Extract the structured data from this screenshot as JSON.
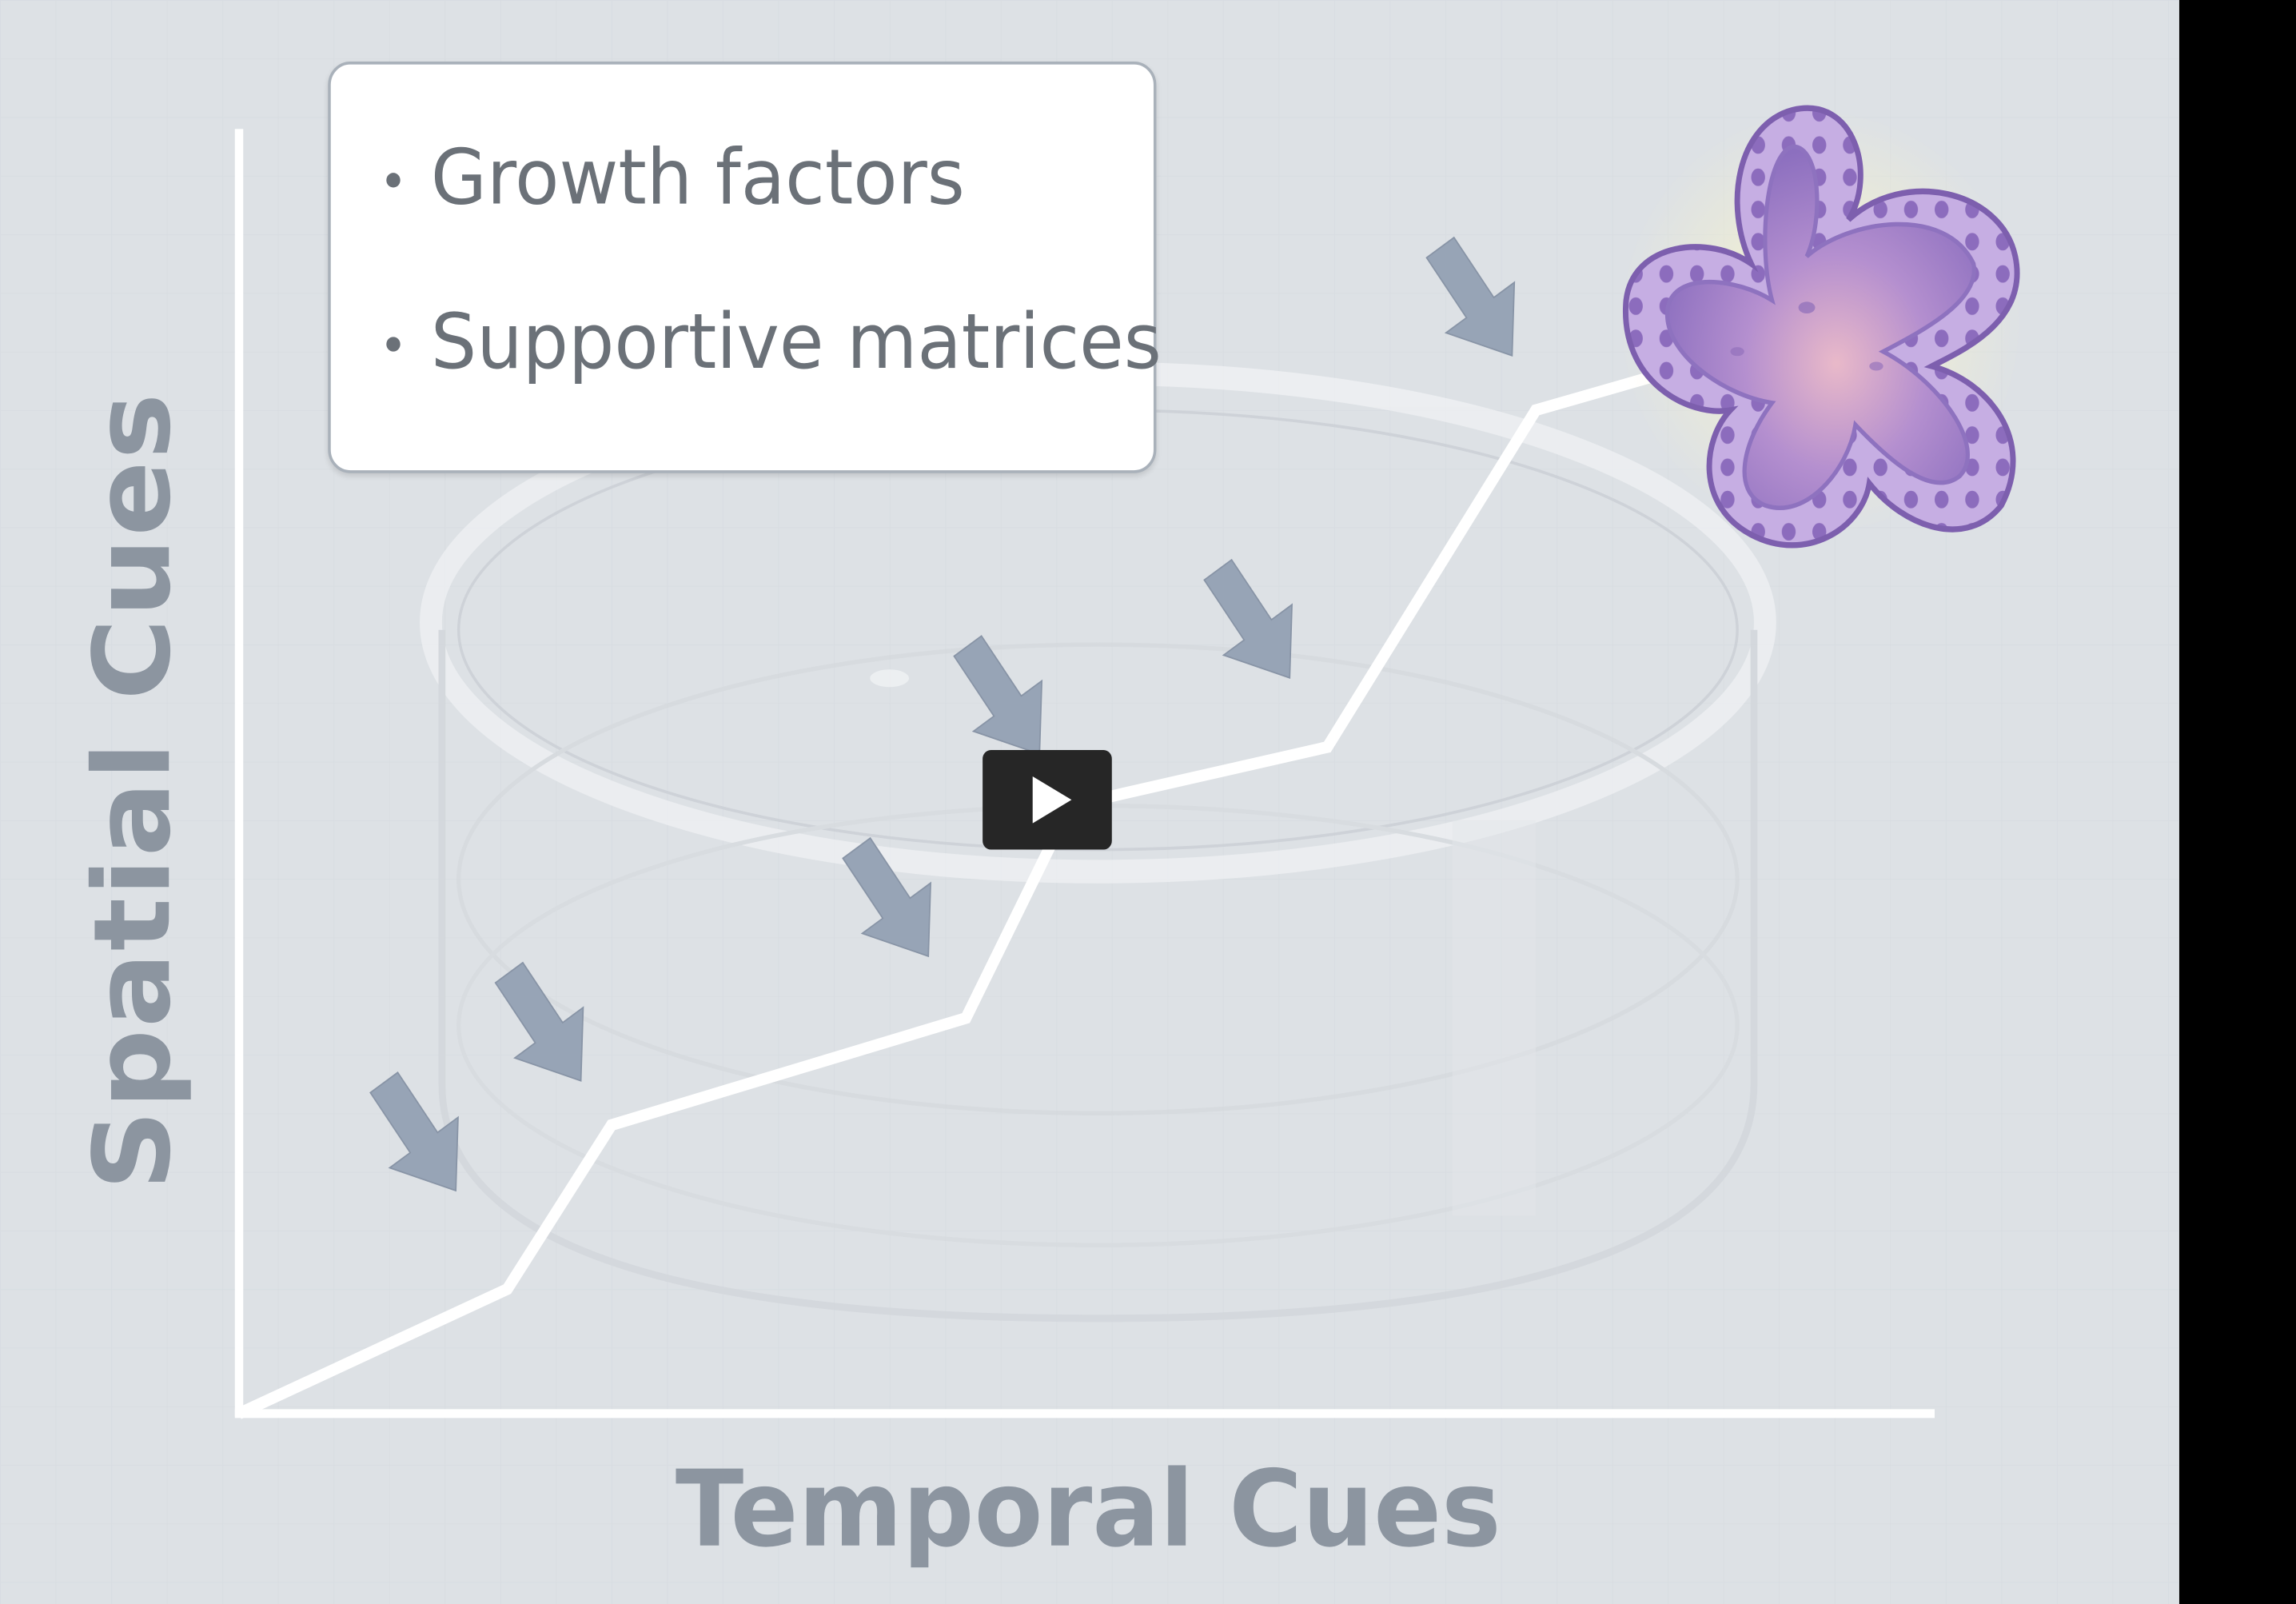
{
  "video": {
    "bullets": [
      "Growth factors",
      "Supportive matrices"
    ],
    "y_axis_label": "Spatial Cues",
    "x_axis_label": "Temporal Cues",
    "colors": {
      "background": "#dde1e5",
      "axis": "#ffffff",
      "arrow": "#97a4b6",
      "organoid": "#a88ad0",
      "play_button": "#262626"
    }
  },
  "player": {
    "play_icon": "play-icon"
  }
}
